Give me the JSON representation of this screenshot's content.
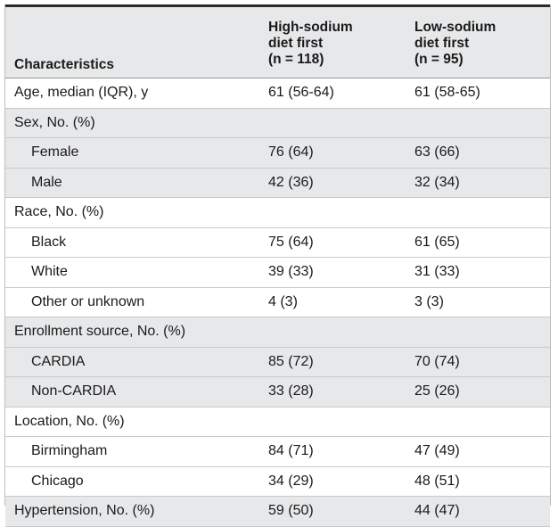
{
  "table": {
    "headers": {
      "characteristics": "Characteristics",
      "group1": [
        "High-sodium",
        "diet first",
        "(n = 118)"
      ],
      "group2": [
        "Low-sodium",
        "diet first",
        "(n = 95)"
      ]
    },
    "rows": [
      {
        "label": "Age, median (IQR), y",
        "high": "61 (56-64)",
        "low": "61 (58-65)"
      },
      {
        "label": "Sex, No. (%)",
        "high": "",
        "low": ""
      },
      {
        "label": "Female",
        "high": "76 (64)",
        "low": "63 (66)"
      },
      {
        "label": "Male",
        "high": "42 (36)",
        "low": "32 (34)"
      },
      {
        "label": "Race, No. (%)",
        "high": "",
        "low": ""
      },
      {
        "label": "Black",
        "high": "75 (64)",
        "low": "61 (65)"
      },
      {
        "label": "White",
        "high": "39 (33)",
        "low": "31 (33)"
      },
      {
        "label": "Other or unknown",
        "high": "4 (3)",
        "low": "3 (3)"
      },
      {
        "label": "Enrollment source, No. (%)",
        "high": "",
        "low": ""
      },
      {
        "label": "CARDIA",
        "high": "85 (72)",
        "low": "70 (74)"
      },
      {
        "label": "Non-CARDIA",
        "high": "33 (28)",
        "low": "25 (26)"
      },
      {
        "label": "Location, No. (%)",
        "high": "",
        "low": ""
      },
      {
        "label": "Birmingham",
        "high": "84 (71)",
        "low": "47 (49)"
      },
      {
        "label": "Chicago",
        "high": "34 (29)",
        "low": "48 (51)"
      },
      {
        "label": "Hypertension, No. (%)",
        "high": "59 (50)",
        "low": "44 (47)"
      }
    ]
  },
  "colors": {
    "header_bg": "#e7e8ea",
    "stripe_bg": "#e7e8ea",
    "row_bg": "#ffffff",
    "text": "#1a1a1a"
  }
}
